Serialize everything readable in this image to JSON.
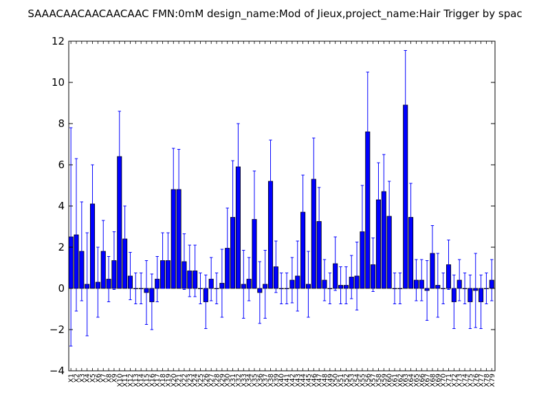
{
  "chart_data": {
    "type": "bar",
    "title": "SAAACAACAACAACAAC  FMN:0mM  design_name:Mod of Jieux,project_name:Hair Trigger by spac",
    "xlabel": "",
    "ylabel": "",
    "ylim": [
      -4,
      12
    ],
    "yticks": [
      -4,
      -2,
      0,
      2,
      4,
      6,
      8,
      10,
      12
    ],
    "grid": false,
    "bar_color": "#0000ff",
    "error_color": "#0000ff",
    "categories": [
      "X1",
      "X2",
      "X3",
      "X4",
      "X5",
      "X6",
      "X7",
      "X8",
      "X9",
      "X10",
      "X11",
      "X12",
      "X13",
      "X14",
      "X15",
      "X16",
      "X17",
      "X18",
      "X19",
      "X20",
      "X21",
      "X22",
      "X23",
      "X24",
      "X25",
      "X26",
      "X27",
      "X28",
      "X29",
      "X30",
      "X31",
      "X32",
      "X33",
      "X34",
      "X35",
      "X36",
      "X37",
      "X38",
      "X39",
      "X40",
      "X41",
      "X42",
      "X43",
      "X44",
      "X45",
      "X46",
      "X47",
      "X48",
      "X49",
      "X50",
      "X51",
      "X52",
      "X53",
      "X54",
      "X55",
      "X56",
      "X57",
      "X58",
      "X59",
      "X60",
      "X61",
      "X62",
      "X63",
      "X64",
      "X65",
      "X66",
      "X67",
      "X68",
      "X69",
      "X70",
      "X71",
      "X72",
      "X73",
      "X74",
      "X75",
      "X76",
      "X77",
      "X78",
      "X79"
    ],
    "values": [
      2.5,
      2.6,
      1.8,
      0.2,
      4.1,
      0.3,
      1.8,
      0.45,
      1.35,
      6.4,
      2.4,
      0.6,
      0.0,
      0.0,
      -0.2,
      -0.65,
      0.45,
      1.35,
      1.35,
      4.8,
      4.8,
      1.3,
      0.85,
      0.85,
      0.0,
      -0.65,
      0.45,
      0.0,
      0.25,
      1.95,
      3.45,
      5.9,
      0.2,
      0.45,
      3.35,
      -0.2,
      0.2,
      5.2,
      1.05,
      0.0,
      0.0,
      0.4,
      0.6,
      3.7,
      0.2,
      5.3,
      3.25,
      0.4,
      0.0,
      1.2,
      0.15,
      0.15,
      0.55,
      0.6,
      2.75,
      7.6,
      1.15,
      4.3,
      4.7,
      3.5,
      0.0,
      0.0,
      8.9,
      3.45,
      0.4,
      0.4,
      -0.1,
      1.7,
      0.15,
      0.0,
      1.15,
      -0.65,
      0.4,
      0.0,
      -0.65,
      -0.1,
      -0.65,
      0.0,
      0.4
    ],
    "errors": [
      5.3,
      3.7,
      2.4,
      2.5,
      1.9,
      1.7,
      1.5,
      1.1,
      1.4,
      2.2,
      1.6,
      1.15,
      0.75,
      0.75,
      1.55,
      1.35,
      1.1,
      1.35,
      1.35,
      2.0,
      1.95,
      1.35,
      1.25,
      1.25,
      0.75,
      1.3,
      1.05,
      0.75,
      1.65,
      1.95,
      2.75,
      2.1,
      1.65,
      1.05,
      2.35,
      1.5,
      1.65,
      2.0,
      1.25,
      0.75,
      0.75,
      1.1,
      1.7,
      1.8,
      1.6,
      2.0,
      1.65,
      1.0,
      0.75,
      1.3,
      0.9,
      0.9,
      1.05,
      1.65,
      2.25,
      2.9,
      1.3,
      1.8,
      1.8,
      1.7,
      0.75,
      0.75,
      2.65,
      1.65,
      1.0,
      1.0,
      1.45,
      1.35,
      1.55,
      0.75,
      1.2,
      1.3,
      1.0,
      0.75,
      1.3,
      1.8,
      1.3,
      0.75,
      1.0
    ]
  }
}
